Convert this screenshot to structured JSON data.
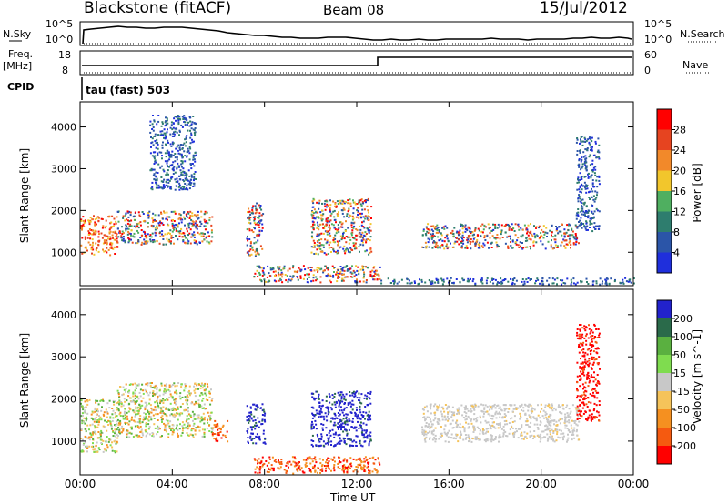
{
  "header": {
    "title": "Blackstone (fitACF)",
    "beam": "Beam 08",
    "date": "15/Jul/2012"
  },
  "top_panels": {
    "nsky_label": "N.Sky",
    "nsky_tick_top": "10^5",
    "nsky_tick_bottom": "10^0",
    "nsearch_label": "N.Search",
    "nsearch_tick_top": "10^5",
    "nsearch_tick_bottom": "10^0",
    "freq_label_1": "Freq.",
    "freq_label_2": "[MHz]",
    "freq_tick_top": "18",
    "freq_tick_bottom": "8",
    "nave_label": "Nave",
    "nave_tick_top": "60",
    "nave_tick_bottom": "0",
    "cpid_label": "CPID",
    "cpid_value": "tau (fast) 503"
  },
  "chart_data": [
    {
      "type": "heatmap",
      "name": "power",
      "ylabel": "Slant Range [km]",
      "ylim": [
        200,
        4600
      ],
      "yticks": [
        "1000",
        "2000",
        "3000",
        "4000"
      ],
      "colorbar_label": "Power [dB]",
      "colorbar_ticks": [
        "4",
        "8",
        "12",
        "16",
        "20",
        "24",
        "28"
      ],
      "colors": [
        "#1f2fdc",
        "#2b55a8",
        "#2e7d6e",
        "#4faf60",
        "#f2c62c",
        "#f2892a",
        "#e64420",
        "#ff0000"
      ],
      "echo_regions": [
        {
          "x": [
            0,
            1.6
          ],
          "y": [
            950,
            1900
          ],
          "level": "high"
        },
        {
          "x": [
            1.6,
            5.7
          ],
          "y": [
            1200,
            2000
          ],
          "level": "mixed"
        },
        {
          "x": [
            3.0,
            5.0
          ],
          "y": [
            2500,
            4300
          ],
          "level": "low"
        },
        {
          "x": [
            7.2,
            7.9
          ],
          "y": [
            900,
            2200
          ],
          "level": "mixed"
        },
        {
          "x": [
            7.5,
            13
          ],
          "y": [
            300,
            700
          ],
          "level": "mixed"
        },
        {
          "x": [
            10.0,
            12.6
          ],
          "y": [
            950,
            2300
          ],
          "level": "mixed"
        },
        {
          "x": [
            14.8,
            21.6
          ],
          "y": [
            1100,
            1700
          ],
          "level": "mixed"
        },
        {
          "x": [
            21.5,
            22.5
          ],
          "y": [
            1500,
            3800
          ],
          "level": "low"
        },
        {
          "x": [
            13,
            24
          ],
          "y": [
            250,
            400
          ],
          "level": "low"
        }
      ]
    },
    {
      "type": "heatmap",
      "name": "velocity",
      "ylabel": "Slant Range [km]",
      "xlabel": "Time UT",
      "xticks": [
        "00:00",
        "04:00",
        "08:00",
        "12:00",
        "16:00",
        "20:00",
        "00:00"
      ],
      "xlim": [
        0,
        24
      ],
      "ylim": [
        200,
        4600
      ],
      "yticks": [
        "1000",
        "2000",
        "3000",
        "4000"
      ],
      "colorbar_label": "Velocity [m s^-1]",
      "colorbar_ticks": [
        "200",
        "100",
        "50",
        "15",
        "-15",
        "-50",
        "-100",
        "-200"
      ],
      "colors": [
        "#2222cc",
        "#2a6a4a",
        "#5ab040",
        "#7fdc4f",
        "#c8c8c8",
        "#f5c35a",
        "#f59020",
        "#f55a10",
        "#ff0000"
      ],
      "echo_regions": [
        {
          "x": [
            0,
            1.6
          ],
          "y": [
            750,
            2000
          ],
          "velocity": "near-zero/green/orange"
        },
        {
          "x": [
            1.6,
            5.7
          ],
          "y": [
            1100,
            2400
          ],
          "velocity": "green/orange"
        },
        {
          "x": [
            5.7,
            6.4
          ],
          "y": [
            1000,
            1500
          ],
          "velocity": "red/orange"
        },
        {
          "x": [
            7.2,
            8.0
          ],
          "y": [
            950,
            1900
          ],
          "velocity": "blue"
        },
        {
          "x": [
            7.5,
            13
          ],
          "y": [
            250,
            650
          ],
          "velocity": "red/orange"
        },
        {
          "x": [
            10.0,
            12.6
          ],
          "y": [
            900,
            2200
          ],
          "velocity": "blue"
        },
        {
          "x": [
            14.8,
            21.6
          ],
          "y": [
            1000,
            1900
          ],
          "velocity": "gray"
        },
        {
          "x": [
            21.5,
            22.5
          ],
          "y": [
            1500,
            3800
          ],
          "velocity": "red"
        }
      ]
    }
  ]
}
